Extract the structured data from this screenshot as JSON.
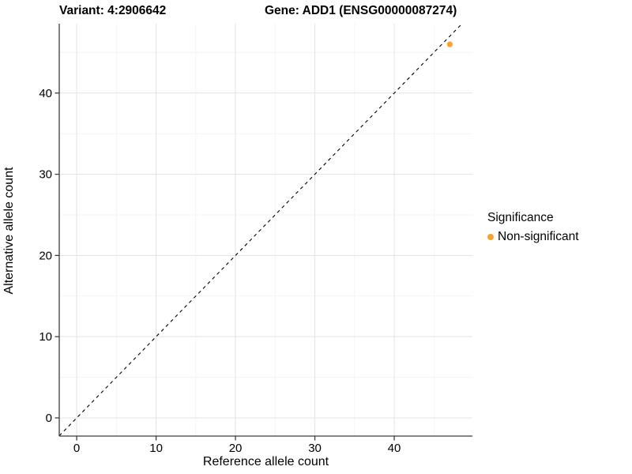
{
  "figure": {
    "background": "#ffffff"
  },
  "chart_data": {
    "type": "scatter",
    "titles": {
      "left": "Variant: 4:2906642",
      "right": "Gene: ADD1 (ENSG00000087274)"
    },
    "xlabel": "Reference allele count",
    "ylabel": "Alternative allele count",
    "xlim": [
      -2.2,
      49.85
    ],
    "ylim": [
      -2.24,
      48.54
    ],
    "x_ticks": [
      0,
      10,
      20,
      30,
      40
    ],
    "y_ticks": [
      0,
      10,
      20,
      30,
      40
    ],
    "x_minor_ticks": [
      5,
      15,
      25,
      35,
      45
    ],
    "y_minor_ticks": [
      5,
      15,
      25,
      35,
      45
    ],
    "grid": "major+minor",
    "reference_line": {
      "type": "abline",
      "intercept": 0,
      "slope": 1,
      "style": "dashed",
      "color": "#000000"
    },
    "legend": {
      "title": "Significance",
      "position": "right"
    },
    "series": [
      {
        "name": "Non-significant",
        "color": "#F9A32D",
        "marker": "dot",
        "points": [
          {
            "x": 47,
            "y": 46
          }
        ]
      }
    ],
    "colors": {
      "grid_major": "#E3E3E3",
      "grid_minor": "#F2F2F2",
      "axis_line": "#3C3C3C",
      "tick": "#3C3C3C",
      "text": "#000000"
    }
  }
}
